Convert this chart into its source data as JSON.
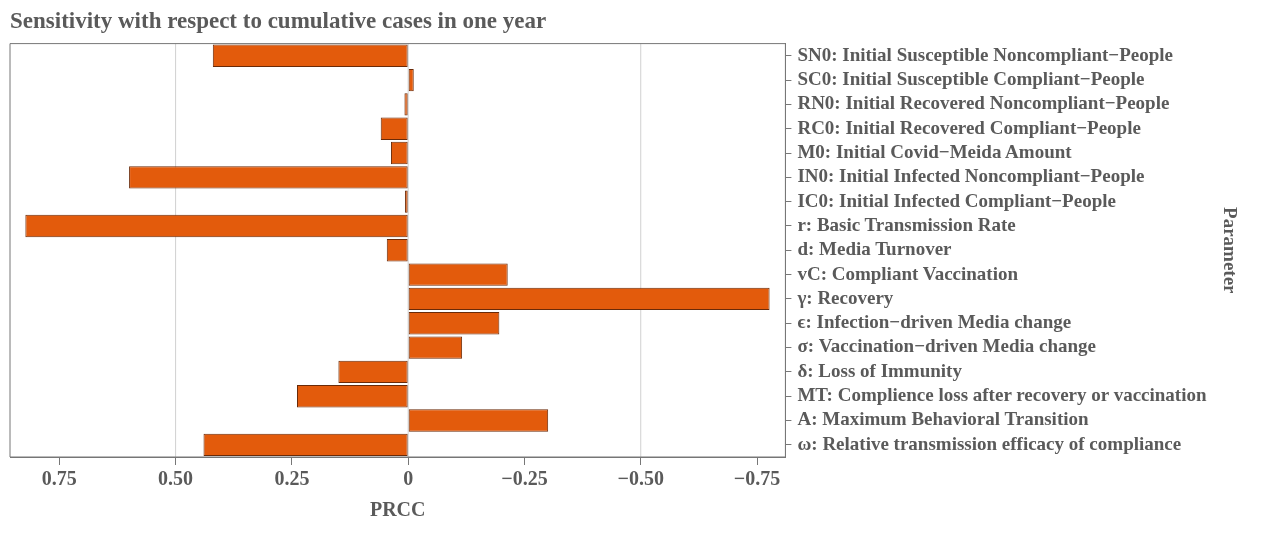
{
  "chart_data": {
    "type": "bar",
    "orientation": "horizontal",
    "title": "Sensitivity with respect to cumulative cases in one year",
    "xlabel": "PRCC",
    "ylabel": "Parameter",
    "categories": [
      "SN0: Initial Susceptible Noncompliant−People",
      "SC0: Initial Susceptible Compliant−People",
      "RN0: Initial Recovered Noncompliant−People",
      "RC0: Initial Recovered Compliant−People",
      "M0: Initial Covid−Meida Amount",
      "IN0: Initial Infected Noncompliant−People",
      "IC0: Initial Infected Compliant−People",
      "r: Basic Transmission Rate",
      "d: Media Turnover",
      "vC: Compliant Vaccination",
      "γ: Recovery",
      "ϵ: Infection−driven Media change",
      "σ: Vaccination−driven Media change",
      "δ: Loss of Immunity",
      "MT: Complience loss after recovery or vaccination",
      "A: Maximum Behavioral Transition",
      "ω: Relative transmission efficacy of compliance"
    ],
    "values": [
      0.42,
      -0.012,
      0.008,
      0.059,
      0.037,
      0.6,
      0.007,
      0.823,
      0.046,
      -0.214,
      -0.777,
      -0.196,
      -0.116,
      0.15,
      0.239,
      -0.301,
      0.44
    ],
    "color": "#e35b0c",
    "xlim": [
      0.856,
      -0.811
    ],
    "xticks": [
      {
        "value": 0.75,
        "label": "0.75"
      },
      {
        "value": 0.5,
        "label": "0.50"
      },
      {
        "value": 0.25,
        "label": "0.25"
      },
      0,
      {
        "value": -0.25,
        "label": "−0.25"
      },
      {
        "value": -0.5,
        "label": "−0.50"
      },
      {
        "value": -0.75,
        "label": "−0.75"
      }
    ],
    "ref_lines": [
      {
        "axis": "x",
        "value": 0.5,
        "color": "#d0d0d0"
      },
      {
        "axis": "x",
        "value": 0,
        "color": "#d0d0d0"
      },
      {
        "axis": "x",
        "value": -0.5,
        "color": "#d0d0d0"
      }
    ],
    "grid": false,
    "legend": false
  }
}
